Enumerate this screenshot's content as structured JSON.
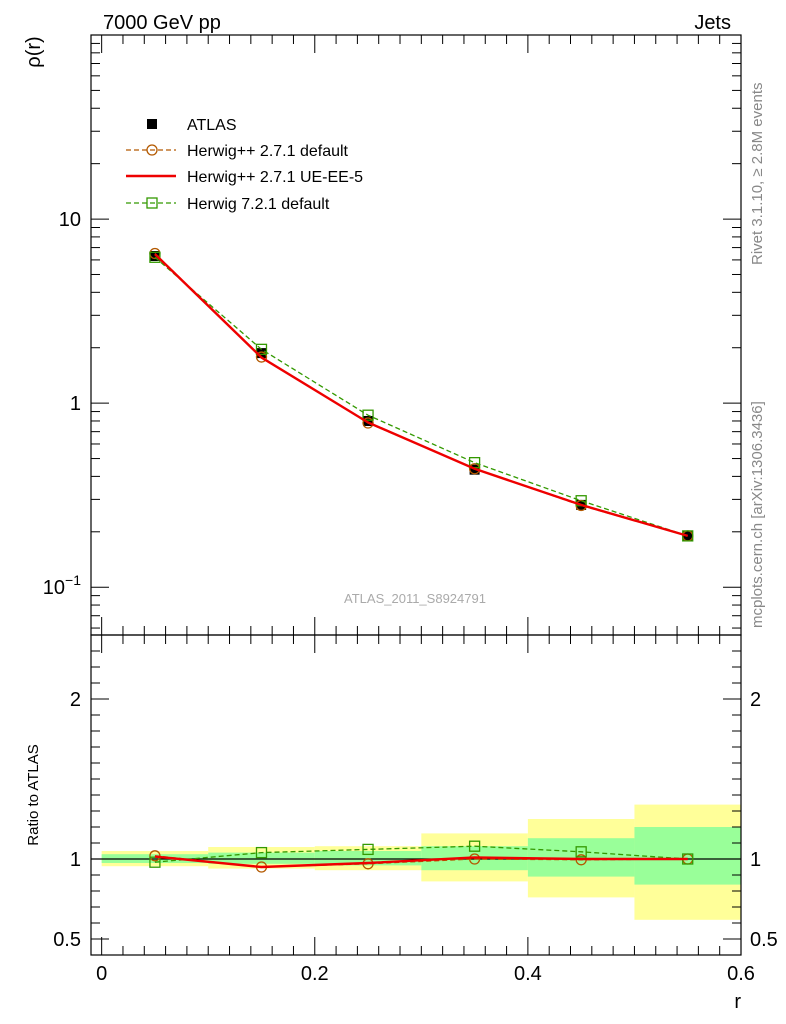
{
  "header": {
    "left": "7000 GeV pp",
    "right": "Jets"
  },
  "side_text": {
    "rivet": "Rivet 3.1.10, ≥ 2.8M events",
    "source": "mcplots.cern.ch [arXiv:1306.3436]"
  },
  "colors": {
    "data": "#000000",
    "herwigpp_default": "#b35900",
    "herwigpp_ue": "#ee0000",
    "herwig7": "#339900",
    "band_inner": "#99ff99",
    "band_outer": "#ffff99"
  },
  "chart_data": [
    {
      "type": "line",
      "panel": "main",
      "ylabel": "ρ(r)",
      "yscale": "log",
      "ylim": [
        0.055,
        100
      ],
      "xlim": [
        -0.01,
        0.6
      ],
      "y_ticks": [
        {
          "value": 10,
          "label": "10"
        },
        {
          "value": 1,
          "label": "1"
        },
        {
          "value": 0.1,
          "label": "10",
          "exp": "−1"
        }
      ],
      "watermark": "ATLAS_2011_S8924791",
      "x": [
        0.05,
        0.15,
        0.25,
        0.35,
        0.45,
        0.55
      ],
      "series": [
        {
          "name": "ATLAS",
          "key": "data",
          "marker": "square-filled",
          "values": [
            6.3,
            1.87,
            0.8,
            0.435,
            0.28,
            0.19
          ]
        },
        {
          "name": "Herwig++ 2.7.1 default",
          "key": "herwigpp_default",
          "marker": "circle-open",
          "dash": true,
          "values": [
            6.5,
            1.78,
            0.78,
            0.44,
            0.278,
            0.19
          ]
        },
        {
          "name": "Herwig++ 2.7.1 UE-EE-5",
          "key": "herwigpp_ue",
          "marker": "none",
          "dash": false,
          "values": [
            6.45,
            1.77,
            0.785,
            0.44,
            0.28,
            0.19
          ]
        },
        {
          "name": "Herwig 7.2.1 default",
          "key": "herwig7",
          "marker": "square-open",
          "dash": true,
          "values": [
            6.2,
            1.96,
            0.86,
            0.475,
            0.295,
            0.19
          ]
        }
      ]
    },
    {
      "type": "line",
      "panel": "ratio",
      "ylabel": "Ratio to ATLAS",
      "xlabel": "r",
      "ylim": [
        0.4,
        2.4
      ],
      "xlim": [
        -0.01,
        0.6
      ],
      "y_ticks": [
        {
          "value": 2,
          "label": "2"
        },
        {
          "value": 1,
          "label": "1"
        },
        {
          "value": 0.5,
          "label": "0.5"
        }
      ],
      "x_ticks": [
        {
          "value": 0,
          "label": "0"
        },
        {
          "value": 0.2,
          "label": "0.2"
        },
        {
          "value": 0.4,
          "label": "0.4"
        },
        {
          "value": 0.6,
          "label": "0.6"
        }
      ],
      "bins": [
        [
          0.0,
          0.1
        ],
        [
          0.1,
          0.2
        ],
        [
          0.2,
          0.3
        ],
        [
          0.3,
          0.4
        ],
        [
          0.4,
          0.5
        ],
        [
          0.5,
          0.6
        ]
      ],
      "band_inner": [
        [
          0.975,
          1.03
        ],
        [
          0.97,
          1.04
        ],
        [
          0.96,
          1.05
        ],
        [
          0.93,
          1.08
        ],
        [
          0.89,
          1.13
        ],
        [
          0.84,
          1.2
        ]
      ],
      "band_outer": [
        [
          0.955,
          1.05
        ],
        [
          0.94,
          1.075
        ],
        [
          0.93,
          1.08
        ],
        [
          0.86,
          1.16
        ],
        [
          0.76,
          1.25
        ],
        [
          0.62,
          1.34
        ]
      ],
      "x": [
        0.05,
        0.15,
        0.25,
        0.35,
        0.45,
        0.55
      ],
      "series": [
        {
          "name": "Herwig++ 2.7.1 default",
          "key": "herwigpp_default",
          "marker": "circle-open",
          "dash": true,
          "values": [
            1.02,
            0.95,
            0.97,
            1.0,
            0.995,
            1.0
          ]
        },
        {
          "name": "Herwig++ 2.7.1 UE-EE-5",
          "key": "herwigpp_ue",
          "marker": "none",
          "dash": false,
          "values": [
            1.015,
            0.95,
            0.975,
            1.01,
            1.0,
            1.0
          ]
        },
        {
          "name": "Herwig 7.2.1 default",
          "key": "herwig7",
          "marker": "square-open",
          "dash": true,
          "values": [
            0.98,
            1.04,
            1.06,
            1.08,
            1.045,
            1.0
          ]
        }
      ]
    }
  ]
}
